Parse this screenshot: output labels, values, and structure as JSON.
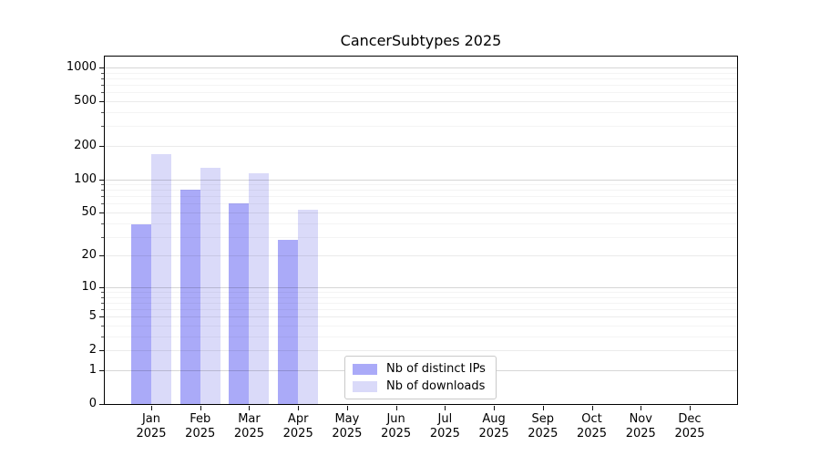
{
  "title": "CancerSubtypes 2025",
  "chart_data": {
    "type": "bar",
    "title": "CancerSubtypes 2025",
    "categories": [
      "Jan 2025",
      "Feb 2025",
      "Mar 2025",
      "Apr 2025",
      "May 2025",
      "Jun 2025",
      "Jul 2025",
      "Aug 2025",
      "Sep 2025",
      "Oct 2025",
      "Nov 2025",
      "Dec 2025"
    ],
    "series": [
      {
        "name": "Nb of distinct IPs",
        "color": "#aaaaf8",
        "values": [
          39,
          81,
          61,
          28,
          0,
          0,
          0,
          0,
          0,
          0,
          0,
          0
        ]
      },
      {
        "name": "Nb of downloads",
        "color": "#dadaf9",
        "values": [
          168,
          126,
          114,
          53,
          0,
          0,
          0,
          0,
          0,
          0,
          0,
          0
        ]
      }
    ],
    "xlabel": "",
    "ylabel": "",
    "yscale": "log1p",
    "y_ticks": [
      0,
      1,
      2,
      5,
      10,
      20,
      50,
      100,
      200,
      500,
      1000
    ],
    "y_minor_ticks": [
      3,
      4,
      6,
      7,
      8,
      9,
      30,
      40,
      60,
      70,
      80,
      90,
      300,
      400,
      600,
      700,
      800,
      900
    ],
    "ylim": [
      0,
      1280
    ],
    "grid": true,
    "legend_position": "lower center"
  },
  "colors": {
    "bar_distinct_ips": "#aaaaf8",
    "bar_downloads": "#dadaf9",
    "grid_decade": "rgba(0,0,0,0.16)",
    "grid_mid": "rgba(0,0,0,0.08)",
    "grid_minor": "rgba(0,0,0,0.045)",
    "axis": "#000000",
    "background": "#ffffff"
  }
}
